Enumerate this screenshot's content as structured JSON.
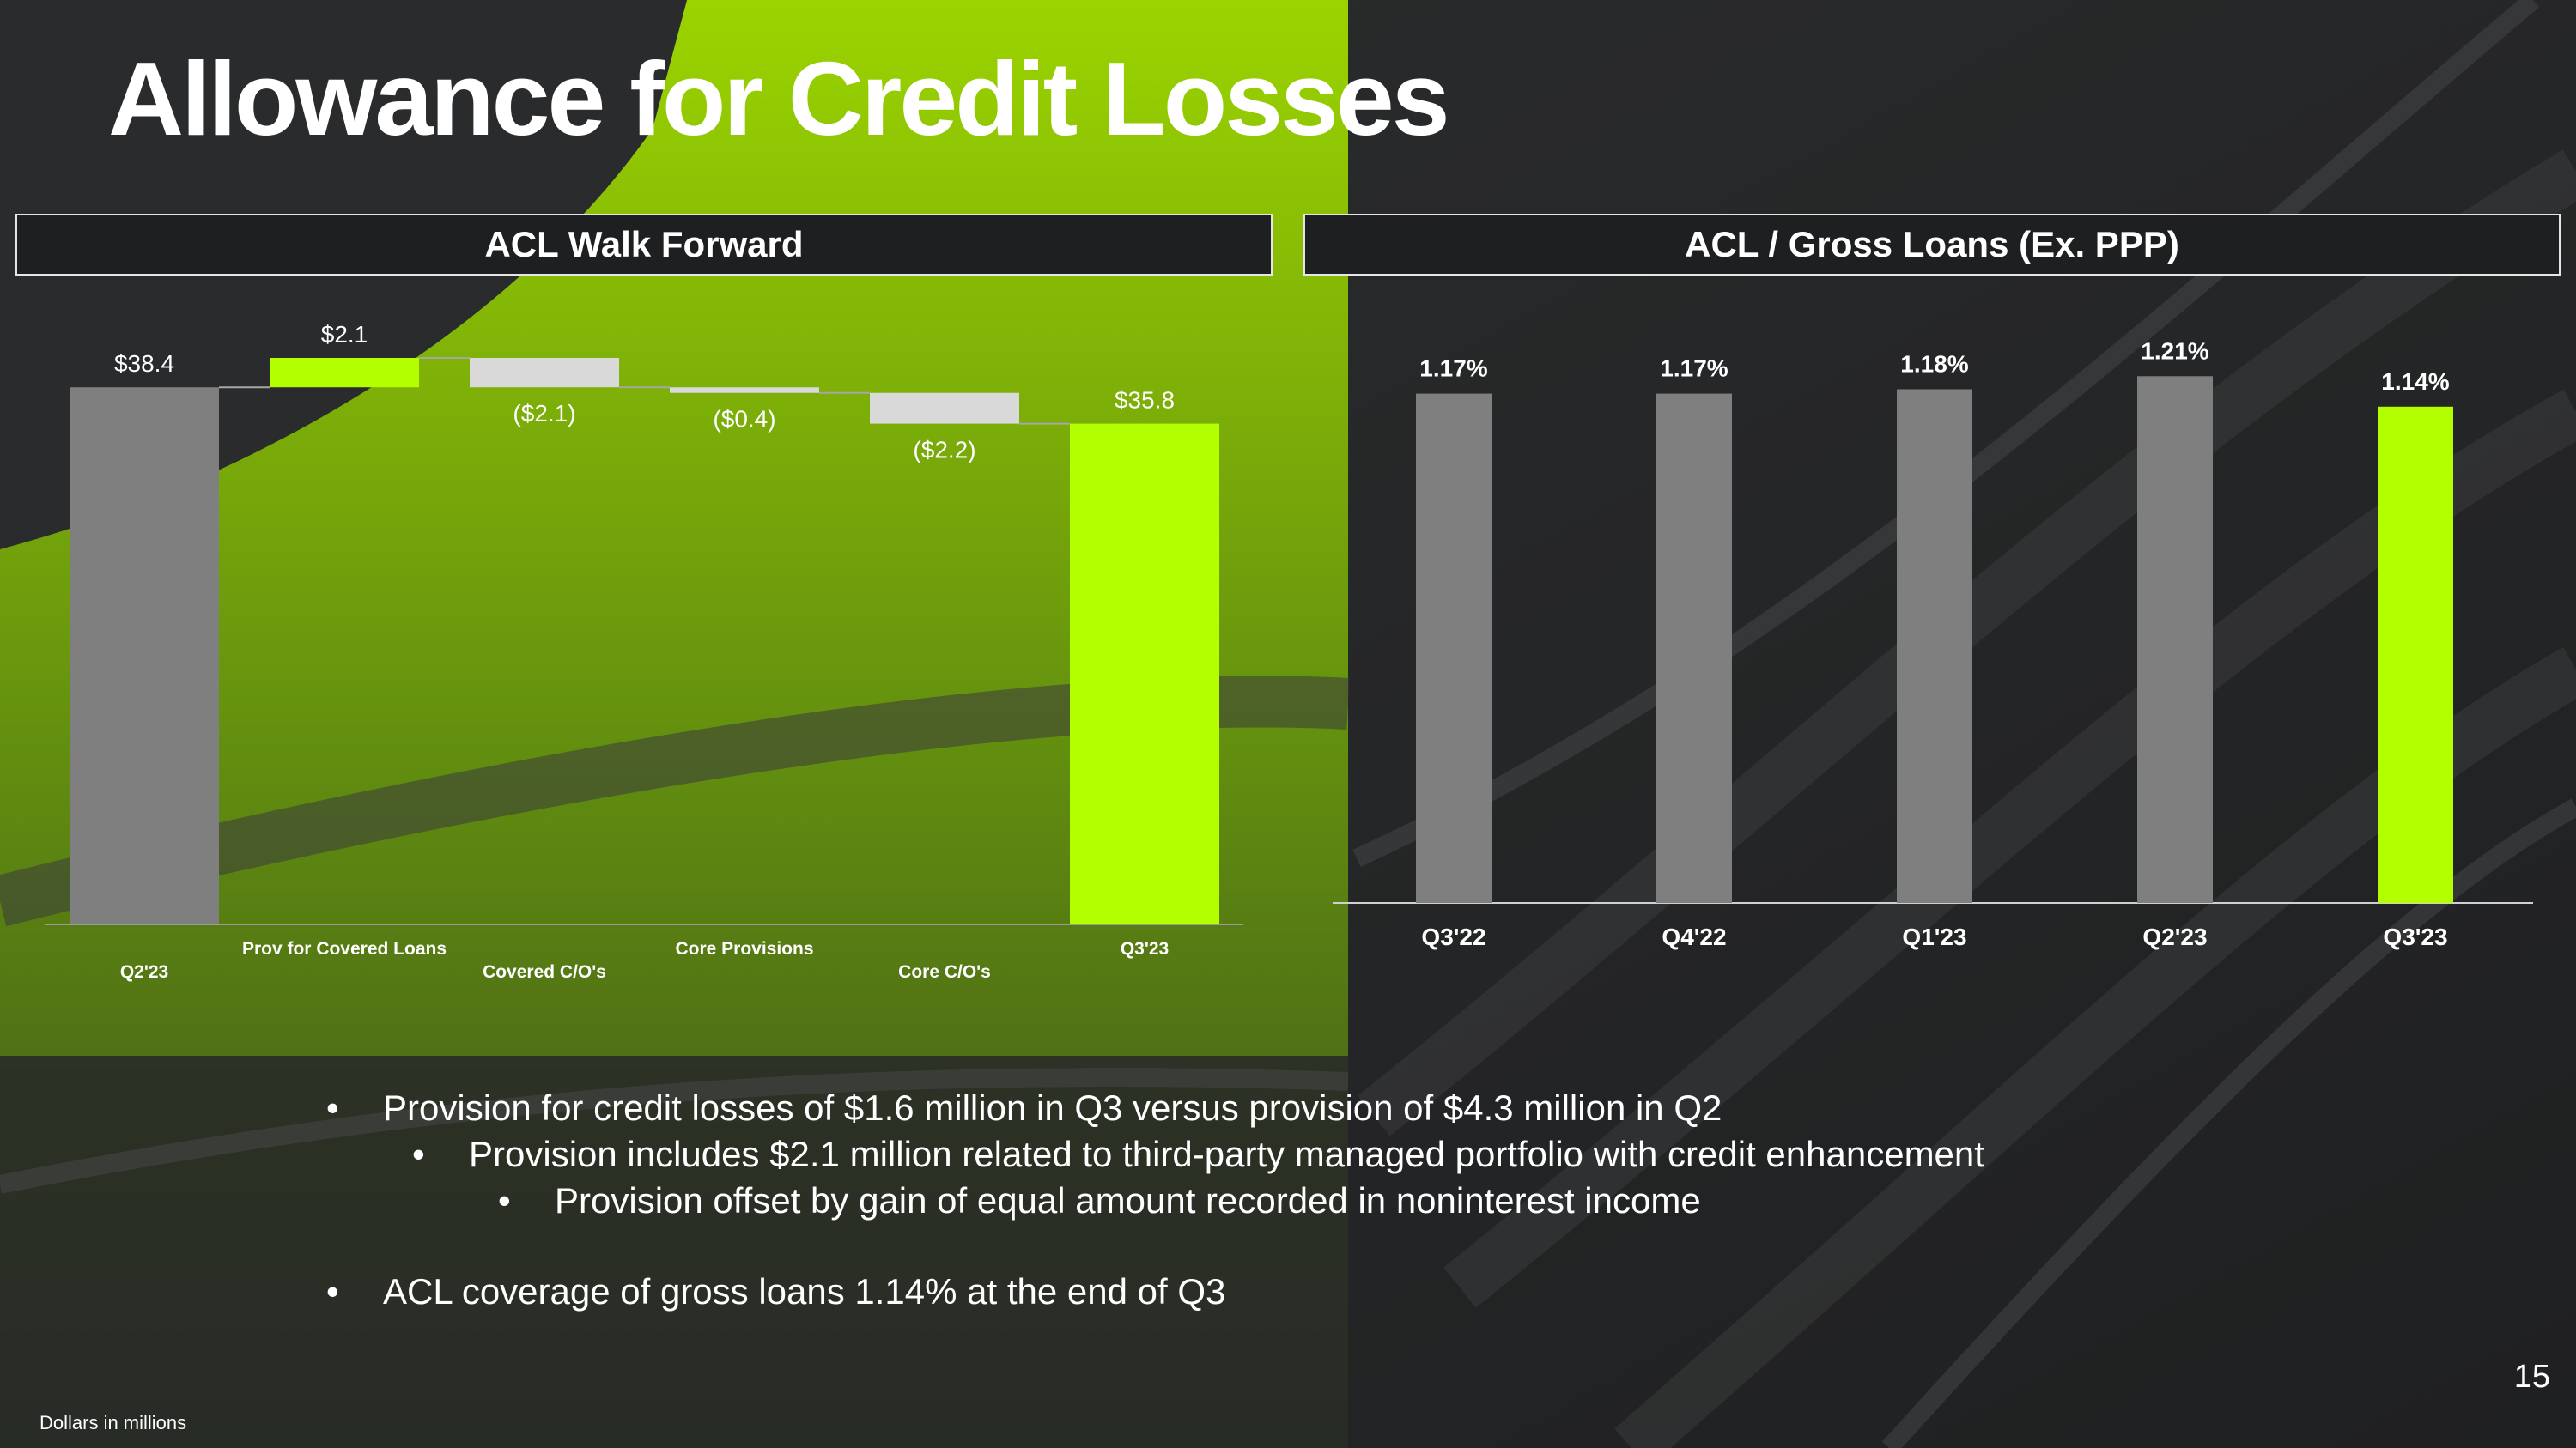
{
  "slide": {
    "title": "Allowance for Credit Losses",
    "page_number": "15",
    "footnote": "Dollars in millions",
    "bullets": [
      {
        "level": 1,
        "text": "Provision for credit losses of $1.6 million in Q3 versus provision of $4.3 million in Q2"
      },
      {
        "level": 2,
        "text": "Provision includes $2.1 million related to third-party managed portfolio with credit enhancement"
      },
      {
        "level": 3,
        "text": "Provision offset by gain of equal amount recorded in noninterest income"
      },
      {
        "level": 1,
        "text": "ACL coverage of gross loans 1.14% at the end of Q3"
      }
    ]
  },
  "colors": {
    "accent_green": "#b3ff00",
    "bar_gray": "#7f7f7f",
    "negative_gray": "#d9d9d9",
    "background": "#2a2b2c"
  },
  "chart_data": [
    {
      "type": "bar",
      "variant": "waterfall",
      "title": "ACL Walk Forward",
      "categories": [
        "Q2'23",
        "Prov for Covered Loans",
        "Covered C/O's",
        "Core Provisions",
        "Core C/O's",
        "Q3'23"
      ],
      "values": [
        38.4,
        2.1,
        -2.1,
        -0.4,
        -2.2,
        35.8
      ],
      "kinds": [
        "total",
        "increase",
        "decrease",
        "decrease",
        "decrease",
        "total"
      ],
      "data_labels": [
        "$38.4",
        "$2.1",
        "($2.1)",
        "($0.4)",
        "($2.2)",
        "$35.8"
      ],
      "ylim": [
        0,
        40.5
      ],
      "grid": false,
      "legend": "none"
    },
    {
      "type": "bar",
      "title": "ACL / Gross Loans (Ex. PPP)",
      "categories": [
        "Q3'22",
        "Q4'22",
        "Q1'23",
        "Q2'23",
        "Q3'23"
      ],
      "values": [
        1.17,
        1.17,
        1.18,
        1.21,
        1.14
      ],
      "data_labels": [
        "1.17%",
        "1.17%",
        "1.18%",
        "1.21%",
        "1.14%"
      ],
      "ylim": [
        0,
        1.25
      ],
      "grid": false,
      "legend": "none"
    }
  ]
}
